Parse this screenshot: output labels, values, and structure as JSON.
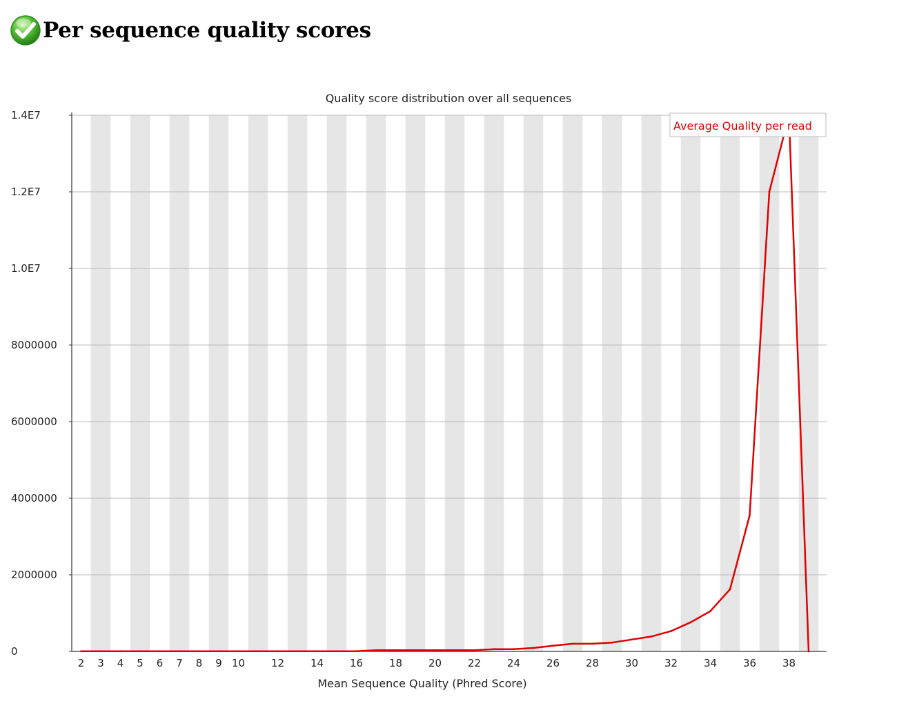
{
  "header": {
    "title": "Per sequence quality scores",
    "status_icon": "pass-check-icon",
    "status_color": "#33aa22"
  },
  "chart_data": {
    "type": "line",
    "title": "Quality score distribution over all sequences",
    "xlabel": "Mean Sequence Quality (Phred Score)",
    "ylabel": "",
    "xlim": [
      2,
      39
    ],
    "ylim": [
      0,
      14000000
    ],
    "x_tick_labels": [
      "2",
      "3",
      "4",
      "5",
      "6",
      "7",
      "8",
      "9",
      "10",
      "12",
      "14",
      "16",
      "18",
      "20",
      "22",
      "24",
      "26",
      "28",
      "30",
      "32",
      "34",
      "36",
      "38"
    ],
    "y_tick_labels": [
      "0",
      "2000000",
      "4000000",
      "6000000",
      "8000000",
      "1.0E7",
      "1.2E7",
      "1.4E7"
    ],
    "y_tick_values": [
      0,
      2000000,
      4000000,
      6000000,
      8000000,
      10000000,
      12000000,
      14000000
    ],
    "grid": true,
    "alternating_column_bands": true,
    "legend_position": "top-right",
    "series": [
      {
        "name": "Average Quality per read",
        "color": "#e00000",
        "x": [
          2,
          3,
          4,
          5,
          6,
          7,
          8,
          9,
          10,
          11,
          12,
          13,
          14,
          15,
          16,
          17,
          18,
          19,
          20,
          21,
          22,
          23,
          24,
          25,
          26,
          27,
          28,
          29,
          30,
          31,
          32,
          33,
          34,
          35,
          36,
          37,
          38,
          39
        ],
        "values": [
          5000,
          5000,
          5000,
          5000,
          5000,
          5000,
          5000,
          5000,
          5000,
          5000,
          5000,
          5000,
          5000,
          5000,
          5000,
          30000,
          30000,
          30000,
          30000,
          30000,
          30000,
          60000,
          60000,
          90000,
          150000,
          200000,
          200000,
          230000,
          310000,
          390000,
          530000,
          760000,
          1050000,
          1620000,
          3550000,
          12000000,
          14000000,
          0
        ]
      }
    ]
  }
}
